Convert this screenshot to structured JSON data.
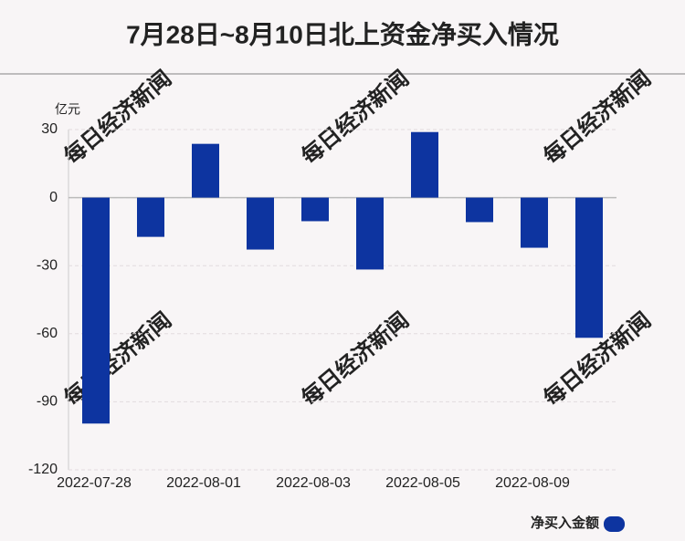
{
  "chart_data": {
    "type": "bar",
    "title": "7月28日~8月10日北上资金净买入情况",
    "y_unit": "亿元",
    "watermark": "每日经济新闻",
    "categories": [
      "2022-07-28",
      null,
      "2022-08-01",
      null,
      "2022-08-03",
      null,
      "2022-08-05",
      null,
      "2022-08-09",
      null
    ],
    "series": [
      {
        "name": "净买入金额",
        "color": "#0d34a0",
        "values": [
          -99.6,
          -17.3,
          23.7,
          -22.9,
          -10.4,
          -31.7,
          28.9,
          -10.8,
          -22.1,
          -61.8
        ]
      }
    ],
    "ylim": [
      -120,
      30
    ],
    "yticks": [
      -120,
      -90,
      -60,
      -30,
      0,
      30
    ],
    "grid": true
  }
}
